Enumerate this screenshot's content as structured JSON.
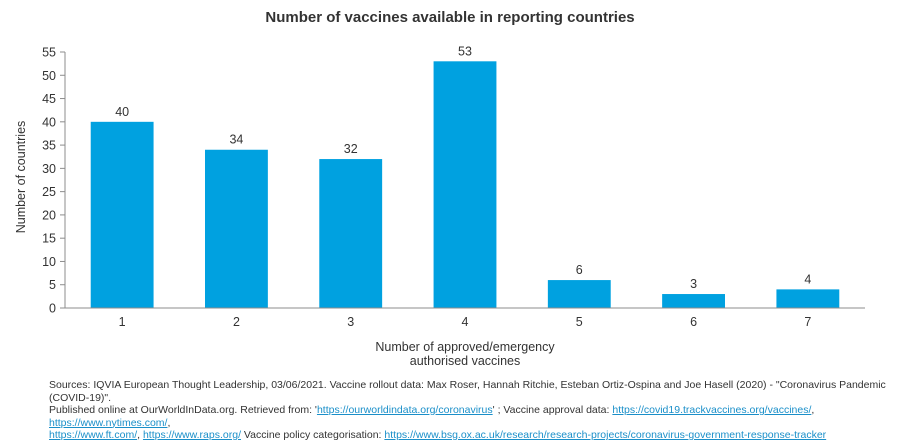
{
  "chart_data": {
    "type": "bar",
    "title": "Number of vaccines available in reporting countries",
    "xlabel": "Number of approved/emergency authorised vaccines",
    "xlabel_lines": [
      "Number of approved/emergency",
      "authorised vaccines"
    ],
    "ylabel": "Number of countries",
    "categories": [
      "1",
      "2",
      "3",
      "4",
      "5",
      "6",
      "7"
    ],
    "values": [
      40,
      34,
      32,
      53,
      6,
      3,
      4
    ],
    "data_labels": [
      "40",
      "34",
      "32",
      "53",
      "6",
      "3",
      "4"
    ],
    "ylim": [
      0,
      55
    ],
    "yticks": [
      0,
      5,
      10,
      15,
      20,
      25,
      30,
      35,
      40,
      45,
      50,
      55
    ],
    "bar_color": "#00a1e0",
    "grid": false,
    "legend": "none"
  },
  "sources": {
    "line1_text": "Sources: IQVIA European Thought Leadership, 03/06/2021. Vaccine rollout data: Max Roser, Hannah Ritchie, Esteban Ortiz-Ospina and Joe Hasell (2020) - \"Coronavirus Pandemic (COVID-19)\".",
    "line2_pre": "Published online at OurWorldInData.org. Retrieved from: '",
    "link_owid": "https://ourworldindata.org/coronavirus",
    "line2_mid": "' ; Vaccine approval data: ",
    "link_track": "https://covid19.trackvaccines.org/vaccines/",
    "sep1": ", ",
    "link_nyt": "https://www.nytimes.com/",
    "sep2": ",",
    "link_ft": "https://www.ft.com/",
    "sep3": ", ",
    "link_raps": "https://www.raps.org/",
    "line3_mid": "  Vaccine policy categorisation: ",
    "link_bsg": "https://www.bsg.ox.ac.uk/research/research-projects/coronavirus-government-response-tracker"
  }
}
